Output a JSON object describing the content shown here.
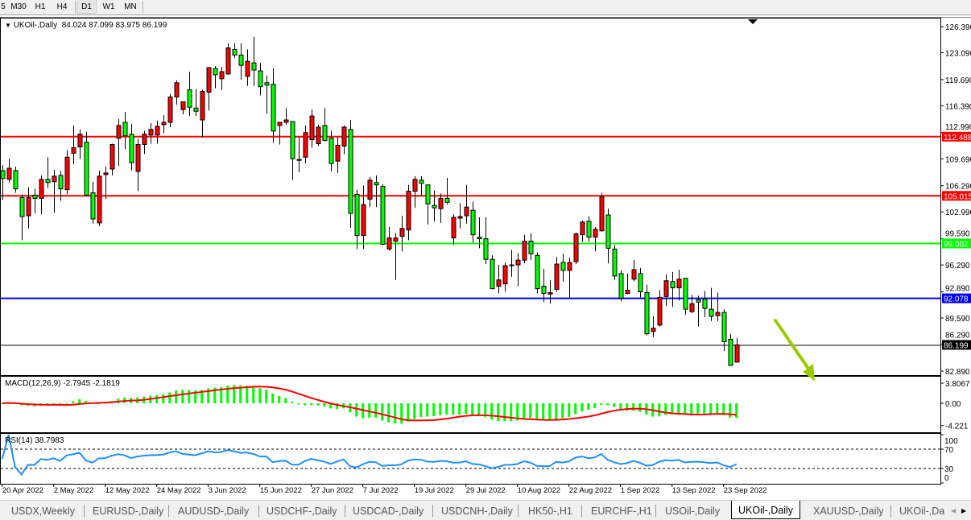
{
  "toolbar": {
    "timeframes": [
      {
        "label": "5"
      },
      {
        "label": "M30"
      },
      {
        "label": "H1"
      },
      {
        "label": "H4"
      },
      {
        "label": "D1",
        "active": true
      },
      {
        "label": "W1"
      },
      {
        "label": "MN"
      }
    ]
  },
  "chart_header": {
    "arrow_icon": "triangle-down",
    "symbol": "UKOil-,Daily",
    "ohlc_text": "84.024 87.099 83.975 86.199"
  },
  "macd_label": {
    "name": "MACD(12,26,9)",
    "values": "-2.7945 -2.1819"
  },
  "rsi_label": {
    "name": "RSI(14)",
    "value": "38.7983"
  },
  "tabs": [
    {
      "label": "USDX,Weekly"
    },
    {
      "label": "EURUSD-,Daily"
    },
    {
      "label": "AUDUSD-,Daily"
    },
    {
      "label": "USDCHF-,Daily"
    },
    {
      "label": "USDCAD-,Daily"
    },
    {
      "label": "USDCNH-,Daily"
    },
    {
      "label": "HK50-,H1"
    },
    {
      "label": "EURCHF-,H1"
    },
    {
      "label": "USOil-,Daily"
    },
    {
      "label": "UKOil-,Daily",
      "active": true
    },
    {
      "label": "XAUUSD-,Daily"
    },
    {
      "label": "UKOil-,Da"
    }
  ],
  "tab_scroll": {
    "left_icon": "triangle-left",
    "right_icon": "triangle-right"
  },
  "colors": {
    "bull_candle": "#ff0000",
    "bear_candle": "#00ff00",
    "candle_outline": "#000000",
    "macd_hist": "#00ff00",
    "macd_signal": "#ff0000",
    "rsi_line": "#1e90ff",
    "arrow": "#99cc00"
  },
  "chart_data": {
    "type": "candlestick",
    "symbol": "UKOil-",
    "timeframe": "Daily",
    "ylim": [
      82.89,
      126.39
    ],
    "y_tick_labels": [
      "126.390",
      "123.090",
      "119.690",
      "116.390",
      "112.990",
      "109.690",
      "106.290",
      "102.990",
      "99.590",
      "96.290",
      "92.890",
      "89.590",
      "86.290",
      "82.890"
    ],
    "x_tick_labels": [
      "20 Apr 2022",
      "2 May 2022",
      "12 May 2022",
      "24 May 2022",
      "3 Jun 2022",
      "15 Jun 2022",
      "27 Jun 2022",
      "7 Jul 2022",
      "19 Jul 2022",
      "29 Jul 2022",
      "10 Aug 2022",
      "22 Aug 2022",
      "1 Sep 2022",
      "13 Sep 2022",
      "23 Sep 2022"
    ],
    "x_tick_every_bars": 8,
    "horizontal_lines": [
      {
        "price": 112.488,
        "label": "112.488",
        "color": "#ff0000"
      },
      {
        "price": 105.015,
        "label": "105.015",
        "color": "#ff0000"
      },
      {
        "price": 99.002,
        "label": "99.002",
        "color": "#00ff00"
      },
      {
        "price": 92.078,
        "label": "92.078",
        "color": "#0000ff"
      }
    ],
    "bid_line": {
      "price": 86.199,
      "label": "86.199",
      "color": "#000000"
    },
    "annotation": {
      "type": "arrow",
      "direction": "down-right",
      "from_price": 89.4,
      "to_price": 81.6
    },
    "ohlc": [
      [
        108.2,
        108.9,
        104.5,
        107.2
      ],
      [
        107.1,
        109.7,
        106.7,
        108.5
      ],
      [
        108.2,
        108.7,
        105.4,
        105.9
      ],
      [
        104.8,
        105.2,
        99.4,
        102.4
      ],
      [
        102.5,
        106.1,
        100.9,
        104.8
      ],
      [
        105.1,
        105.9,
        102.8,
        104.7
      ],
      [
        104.7,
        107.6,
        102.7,
        107.1
      ],
      [
        107.1,
        109.9,
        106.0,
        106.7
      ],
      [
        106.8,
        108.3,
        102.9,
        107.5
      ],
      [
        107.6,
        108.2,
        104.4,
        105.9
      ],
      [
        105.8,
        110.8,
        105.2,
        109.9
      ],
      [
        110.4,
        113.9,
        109.0,
        111.1
      ],
      [
        111.2,
        113.4,
        109.7,
        112.8
      ],
      [
        111.8,
        113.1,
        105.0,
        105.1
      ],
      [
        105.4,
        106.8,
        101.5,
        102.1
      ],
      [
        101.6,
        108.2,
        101.2,
        107.5
      ],
      [
        107.7,
        108.7,
        104.6,
        107.9
      ],
      [
        108.4,
        111.6,
        107.6,
        111.5
      ],
      [
        112.3,
        114.7,
        108.8,
        113.9
      ],
      [
        114.3,
        115.6,
        110.9,
        112.6
      ],
      [
        112.8,
        114.1,
        108.2,
        109.2
      ],
      [
        108.1,
        112.2,
        105.6,
        111.5
      ],
      [
        111.5,
        113.2,
        110.3,
        112.8
      ],
      [
        112.7,
        114.2,
        111.6,
        113.4
      ],
      [
        112.7,
        114.5,
        111.6,
        113.8
      ],
      [
        114.0,
        115.2,
        112.9,
        114.3
      ],
      [
        114.3,
        117.9,
        113.7,
        117.5
      ],
      [
        117.5,
        119.6,
        116.5,
        119.3
      ],
      [
        115.9,
        116.9,
        115.3,
        116.9
      ],
      [
        118.4,
        120.7,
        115.1,
        116.2
      ],
      [
        116.1,
        118.5,
        115.1,
        115.7
      ],
      [
        114.6,
        118.4,
        112.4,
        118.2
      ],
      [
        118.1,
        121.3,
        115.8,
        121.2
      ],
      [
        121.1,
        121.4,
        118.6,
        120.3
      ],
      [
        119.8,
        121.3,
        118.4,
        120.7
      ],
      [
        120.4,
        124.3,
        120.3,
        123.7
      ],
      [
        123.5,
        124.3,
        122.4,
        122.8
      ],
      [
        122.8,
        124.3,
        119.7,
        121.5
      ],
      [
        120.1,
        123.5,
        118.9,
        122.0
      ],
      [
        121.8,
        125.1,
        118.9,
        120.9
      ],
      [
        120.8,
        121.8,
        117.7,
        118.8
      ],
      [
        119.3,
        120.2,
        115.4,
        119.0
      ],
      [
        119.1,
        121.1,
        111.7,
        113.2
      ],
      [
        113.9,
        114.3,
        111.5,
        114.3
      ],
      [
        114.3,
        116.1,
        114.0,
        114.6
      ],
      [
        114.4,
        114.4,
        107.0,
        109.7
      ],
      [
        109.6,
        112.5,
        108.0,
        109.6
      ],
      [
        109.9,
        113.9,
        109.1,
        113.0
      ],
      [
        112.1,
        115.9,
        111.1,
        115.1
      ],
      [
        111.6,
        114.0,
        111.3,
        113.7
      ],
      [
        113.9,
        116.1,
        111.9,
        112.0
      ],
      [
        112.3,
        113.2,
        108.1,
        109.1
      ],
      [
        109.4,
        112.5,
        107.9,
        111.4
      ],
      [
        111.3,
        113.9,
        110.3,
        113.7
      ],
      [
        113.4,
        114.6,
        101.0,
        102.8
      ],
      [
        105.2,
        105.8,
        98.3,
        100.0
      ],
      [
        100.0,
        106.3,
        98.3,
        103.9
      ],
      [
        104.6,
        107.4,
        103.6,
        107.0
      ],
      [
        106.7,
        107.6,
        103.6,
        106.4
      ],
      [
        106.2,
        106.5,
        98.8,
        98.9
      ],
      [
        98.3,
        101.1,
        98.1,
        99.7
      ],
      [
        99.3,
        100.3,
        94.4,
        99.7
      ],
      [
        99.9,
        102.5,
        98.0,
        100.9
      ],
      [
        100.7,
        106.4,
        99.4,
        105.6
      ],
      [
        105.6,
        107.5,
        103.5,
        107.1
      ],
      [
        107.0,
        107.5,
        105.0,
        106.6
      ],
      [
        106.4,
        106.4,
        101.4,
        104.0
      ],
      [
        103.8,
        105.7,
        101.8,
        103.5
      ],
      [
        103.4,
        105.3,
        101.6,
        104.7
      ],
      [
        104.7,
        107.3,
        103.9,
        104.2
      ],
      [
        99.7,
        102.7,
        98.8,
        102.3
      ],
      [
        102.2,
        104.1,
        100.9,
        102.4
      ],
      [
        102.5,
        106.4,
        101.5,
        103.6
      ],
      [
        103.2,
        104.3,
        99.1,
        100.1
      ],
      [
        99.8,
        102.3,
        98.4,
        99.6
      ],
      [
        99.6,
        102.3,
        96.4,
        97.0
      ],
      [
        97.0,
        97.5,
        93.2,
        93.3
      ],
      [
        93.6,
        96.3,
        92.7,
        94.4
      ],
      [
        93.9,
        96.6,
        92.9,
        96.2
      ],
      [
        96.3,
        98.2,
        94.8,
        96.3
      ],
      [
        96.3,
        97.8,
        93.6,
        96.9
      ],
      [
        96.9,
        100.1,
        96.5,
        99.3
      ],
      [
        99.3,
        100.3,
        96.9,
        97.7
      ],
      [
        97.5,
        97.9,
        92.7,
        93.3
      ],
      [
        93.6,
        95.8,
        91.6,
        92.7
      ],
      [
        92.6,
        94.4,
        91.4,
        92.8
      ],
      [
        93.2,
        97.3,
        92.9,
        96.4
      ],
      [
        96.6,
        97.7,
        94.2,
        95.6
      ],
      [
        95.6,
        97.2,
        92.2,
        96.6
      ],
      [
        96.7,
        100.4,
        96.4,
        100.2
      ],
      [
        100.1,
        101.9,
        99.2,
        101.7
      ],
      [
        101.8,
        102.4,
        99.2,
        99.8
      ],
      [
        99.8,
        101.1,
        98.0,
        100.8
      ],
      [
        100.6,
        105.4,
        100.5,
        104.9
      ],
      [
        102.6,
        103.4,
        96.5,
        98.4
      ],
      [
        98.3,
        98.8,
        94.4,
        94.9
      ],
      [
        95.2,
        95.6,
        91.7,
        92.1
      ],
      [
        92.7,
        95.2,
        92.6,
        93.1
      ],
      [
        94.5,
        96.9,
        94.2,
        95.7
      ],
      [
        95.2,
        95.9,
        92.2,
        92.9
      ],
      [
        92.8,
        93.8,
        87.4,
        87.6
      ],
      [
        87.9,
        89.8,
        87.2,
        88.3
      ],
      [
        88.7,
        93.1,
        88.5,
        92.2
      ],
      [
        92.3,
        95.1,
        91.1,
        94.3
      ],
      [
        94.2,
        95.4,
        91.0,
        93.4
      ],
      [
        93.4,
        95.7,
        91.8,
        94.5
      ],
      [
        94.6,
        94.6,
        90.0,
        90.7
      ],
      [
        90.4,
        92.5,
        90.2,
        91.4
      ],
      [
        91.9,
        92.4,
        88.5,
        91.6
      ],
      [
        92.0,
        93.0,
        89.7,
        90.8
      ],
      [
        90.7,
        93.4,
        89.2,
        89.8
      ],
      [
        89.9,
        92.8,
        89.2,
        90.3
      ],
      [
        90.3,
        90.7,
        85.4,
        86.6
      ],
      [
        86.9,
        87.6,
        83.6,
        83.6
      ],
      [
        84.024,
        87.099,
        83.975,
        86.199
      ]
    ],
    "macd": {
      "fast": 12,
      "slow": 26,
      "signal": 9,
      "ylim": [
        -4.221,
        3.8067
      ],
      "y_tick_labels": [
        "3.8067",
        "0.00",
        "-4.221"
      ]
    },
    "rsi": {
      "period": 14,
      "levels": [
        70,
        30
      ],
      "ylim": [
        0,
        100
      ],
      "y_tick_labels": [
        "100",
        "70",
        "30",
        "0"
      ]
    }
  }
}
